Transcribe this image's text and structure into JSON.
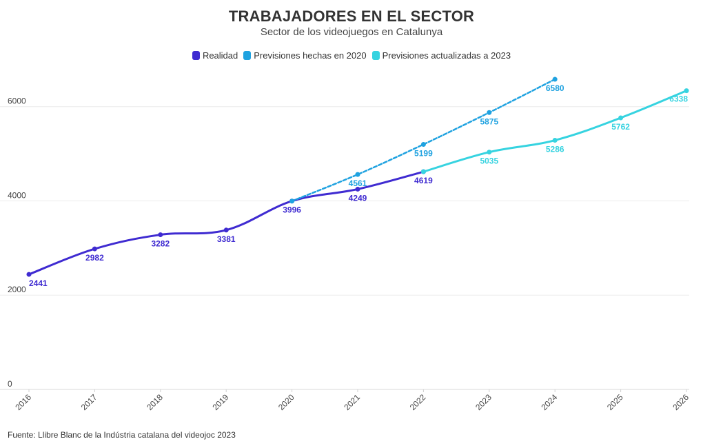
{
  "chart_data": {
    "type": "line",
    "title": "TRABAJADORES EN EL SECTOR",
    "subtitle": "Sector de los videojuegos en Catalunya",
    "source": "Fuente: Llibre Blanc de la Indústria catalana del videojoc 2023",
    "xlabel": "",
    "ylabel": "",
    "x": [
      "2016",
      "2017",
      "2018",
      "2019",
      "2020",
      "2021",
      "2022",
      "2023",
      "2024",
      "2025",
      "2026"
    ],
    "ylim": [
      0,
      6800
    ],
    "yticks": [
      0,
      2000,
      4000,
      6000
    ],
    "grid": true,
    "legend_position": "top-center",
    "series": [
      {
        "name": "Realidad",
        "color": "#3f2bd1",
        "dashed": false,
        "points": [
          {
            "x": "2016",
            "y": 2441,
            "label": "2441"
          },
          {
            "x": "2017",
            "y": 2982,
            "label": "2982"
          },
          {
            "x": "2018",
            "y": 3282,
            "label": "3282"
          },
          {
            "x": "2019",
            "y": 3381,
            "label": "3381"
          },
          {
            "x": "2020",
            "y": 3996,
            "label": "3996"
          },
          {
            "x": "2021",
            "y": 4249,
            "label": "4249"
          },
          {
            "x": "2022",
            "y": 4619,
            "label": "4619"
          }
        ]
      },
      {
        "name": "Previsiones hechas en 2020",
        "color": "#1fa2e0",
        "dashed": true,
        "points": [
          {
            "x": "2020",
            "y": 3996,
            "label": ""
          },
          {
            "x": "2021",
            "y": 4561,
            "label": "4561"
          },
          {
            "x": "2022",
            "y": 5199,
            "label": "5199"
          },
          {
            "x": "2023",
            "y": 5875,
            "label": "5875"
          },
          {
            "x": "2024",
            "y": 6580,
            "label": "6580"
          }
        ]
      },
      {
        "name": "Previsiones actualizadas a 2023",
        "color": "#36d3e0",
        "dashed": false,
        "points": [
          {
            "x": "2022",
            "y": 4619,
            "label": ""
          },
          {
            "x": "2023",
            "y": 5035,
            "label": "5035"
          },
          {
            "x": "2024",
            "y": 5286,
            "label": "5286"
          },
          {
            "x": "2025",
            "y": 5762,
            "label": "5762"
          },
          {
            "x": "2026",
            "y": 6338,
            "label": "6338"
          }
        ]
      }
    ]
  }
}
